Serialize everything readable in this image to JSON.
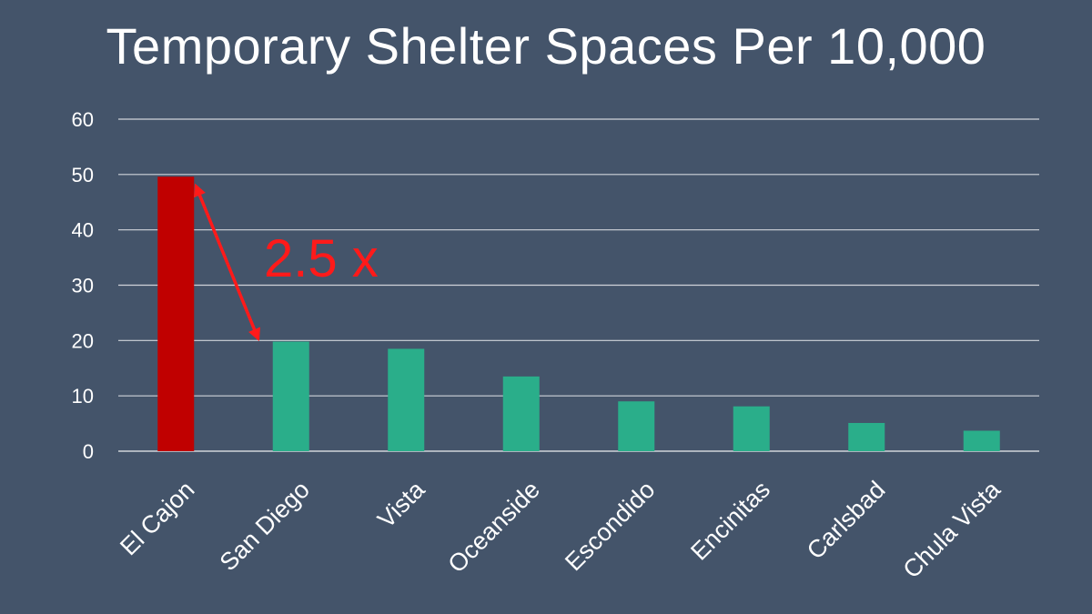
{
  "chart_data": {
    "type": "bar",
    "title": "Temporary Shelter Spaces Per 10,000",
    "categories": [
      "El Cajon",
      "San Diego",
      "Vista",
      "Oceanside",
      "Escondido",
      "Encinitas",
      "Carlsbad",
      "Chula Vista"
    ],
    "values": [
      49.6,
      19.8,
      18.5,
      13.5,
      9.0,
      8.1,
      5.1,
      3.7
    ],
    "bar_colors": [
      "#c00000",
      "#2aae8a",
      "#2aae8a",
      "#2aae8a",
      "#2aae8a",
      "#2aae8a",
      "#2aae8a",
      "#2aae8a"
    ],
    "ylim": [
      0,
      60
    ],
    "yticks": [
      0,
      10,
      20,
      30,
      40,
      50,
      60
    ],
    "grid": true,
    "xlabel": "",
    "ylabel": "",
    "annotation": {
      "text": "2.5 x",
      "color": "#ff1a1a",
      "arrow_from": {
        "category": "El Cajon",
        "value": 49.6
      },
      "arrow_to": {
        "category": "San Diego",
        "value": 19.8
      }
    }
  },
  "colors": {
    "background": "#44546a",
    "text": "#ffffff",
    "gridline": "#ffffff"
  }
}
